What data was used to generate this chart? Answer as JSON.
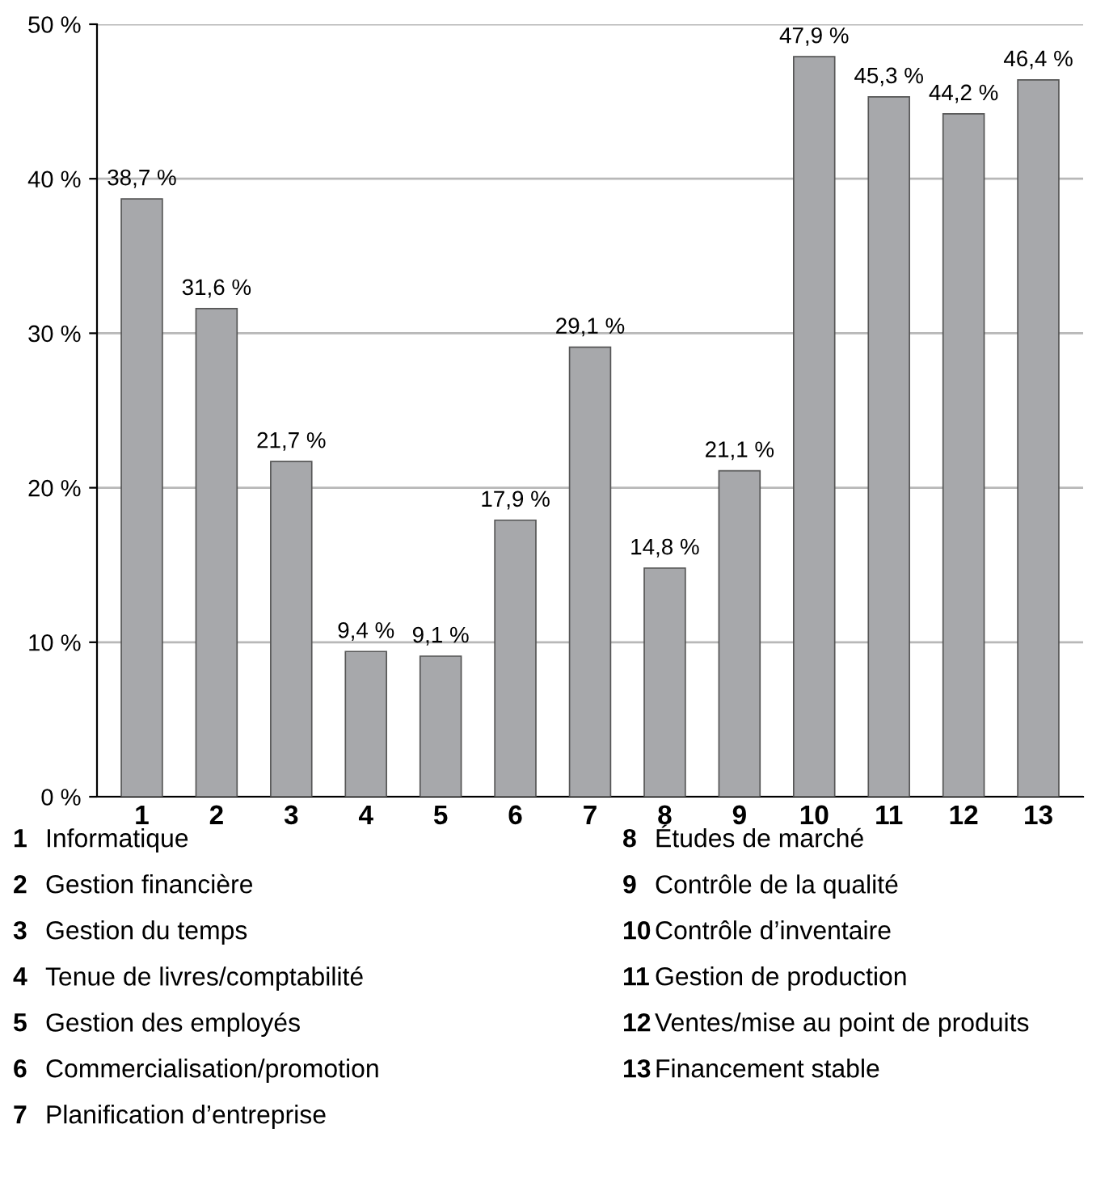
{
  "chart_data": {
    "type": "bar",
    "categories": [
      "1",
      "2",
      "3",
      "4",
      "5",
      "6",
      "7",
      "8",
      "9",
      "10",
      "11",
      "12",
      "13"
    ],
    "values": [
      38.7,
      31.6,
      21.7,
      9.4,
      9.1,
      17.9,
      29.1,
      14.8,
      21.1,
      47.9,
      45.3,
      44.2,
      46.4
    ],
    "value_labels": [
      "38,7 %",
      "31,6 %",
      "21,7 %",
      "9,4 %",
      "9,1 %",
      "17,9 %",
      "29,1 %",
      "14,8 %",
      "21,1 %",
      "47,9 %",
      "45,3 %",
      "44,2 %",
      "46,4 %"
    ],
    "color": "#a7a8ab",
    "ylim": [
      0,
      50
    ],
    "yticks": [
      {
        "value": 0,
        "label": "0 %"
      },
      {
        "value": 10,
        "label": "10 %"
      },
      {
        "value": 20,
        "label": "20 %"
      },
      {
        "value": 30,
        "label": "30 %"
      },
      {
        "value": 40,
        "label": "40 %"
      },
      {
        "value": 50,
        "label": "50 %"
      }
    ],
    "grid": "y",
    "annotations": [
      "1 Informatique",
      "2 Gestion financière",
      "3 Gestion du temps",
      "4 Tenue de livres/comptabilité",
      "5 Gestion des employés",
      "6 Commercialisation/promotion",
      "7 Planification d’entreprise",
      "8 Études de marché",
      "9 Contrôle de la qualité",
      "10 Contrôle d’inventaire",
      "11 Gestion de production",
      "12 Ventes/mise au point de produits",
      "13 Financement stable"
    ]
  }
}
